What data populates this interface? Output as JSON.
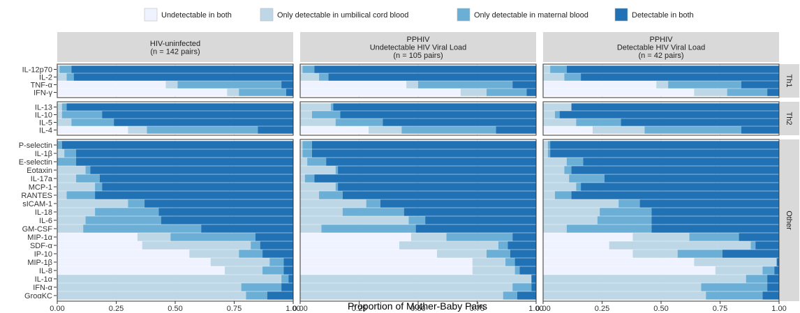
{
  "chart_data": {
    "type": "bar",
    "stacked": true,
    "orientation": "horizontal",
    "xlabel": "Proportion of Mother-Baby Pairs",
    "xlim": [
      0,
      1
    ],
    "x_ticks": [
      "0.00",
      "0.25",
      "0.50",
      "0.75",
      "1.00"
    ],
    "grid": true,
    "legend_position": "top",
    "series": [
      {
        "name": "Undetectable in both",
        "color": "#eff3ff"
      },
      {
        "name": "Only detectable in umbilical cord blood",
        "color": "#bdd7e7"
      },
      {
        "name": "Only detectable in maternal blood",
        "color": "#6baed6"
      },
      {
        "name": "Detectable in both",
        "color": "#2171b5"
      }
    ],
    "panels": [
      {
        "title_lines": [
          "HIV-uninfected",
          "(n = 142 pairs)"
        ]
      },
      {
        "title_lines": [
          "PPHIV",
          "Undetectable HIV Viral Load",
          "(n = 105 pairs)"
        ]
      },
      {
        "title_lines": [
          "PPHIV",
          "Detectable HIV Viral Load",
          "(n = 42 pairs)"
        ]
      }
    ],
    "groups": [
      {
        "label": "Th1",
        "rows": [
          "IL-12p70",
          "IL-2",
          "TNF-α",
          "IFN-γ"
        ]
      },
      {
        "label": "Th2",
        "rows": [
          "IL-13",
          "IL-10",
          "IL-5",
          "IL-4"
        ]
      },
      {
        "label": "Other",
        "rows": [
          "P-selectin",
          "IL-1β",
          "E-selectin",
          "Eotaxin",
          "IL-17a",
          "MCP-1",
          "RANTES",
          "sICAM-1",
          "IL-18",
          "IL-6",
          "GM-CSF",
          "MIP-1α",
          "SDF-α",
          "IP-10",
          "MIP-1β",
          "IL-8",
          "IL-1α",
          "IFN-α",
          "GroαKC"
        ]
      }
    ],
    "values": [
      [
        [
          0.0,
          0.01,
          0.05,
          0.94
        ],
        [
          0.0,
          0.04,
          0.03,
          0.93
        ],
        [
          0.46,
          0.05,
          0.44,
          0.05
        ],
        [
          0.72,
          0.05,
          0.2,
          0.03
        ],
        [
          0.0,
          0.02,
          0.02,
          0.96
        ],
        [
          0.0,
          0.02,
          0.17,
          0.81
        ],
        [
          0.0,
          0.06,
          0.18,
          0.76
        ],
        [
          0.3,
          0.08,
          0.47,
          0.15
        ],
        [
          0.0,
          0.0,
          0.02,
          0.98
        ],
        [
          0.0,
          0.03,
          0.05,
          0.92
        ],
        [
          0.0,
          0.0,
          0.08,
          0.92
        ],
        [
          0.0,
          0.12,
          0.02,
          0.86
        ],
        [
          0.0,
          0.08,
          0.1,
          0.82
        ],
        [
          0.0,
          0.16,
          0.03,
          0.81
        ],
        [
          0.0,
          0.04,
          0.12,
          0.84
        ],
        [
          0.0,
          0.3,
          0.07,
          0.63
        ],
        [
          0.0,
          0.16,
          0.27,
          0.57
        ],
        [
          0.0,
          0.12,
          0.32,
          0.56
        ],
        [
          0.0,
          0.11,
          0.5,
          0.39
        ],
        [
          0.34,
          0.14,
          0.36,
          0.16
        ],
        [
          0.36,
          0.46,
          0.04,
          0.14
        ],
        [
          0.56,
          0.21,
          0.1,
          0.13
        ],
        [
          0.65,
          0.25,
          0.06,
          0.04
        ],
        [
          0.71,
          0.16,
          0.09,
          0.04
        ],
        [
          0.0,
          0.95,
          0.03,
          0.02
        ],
        [
          0.0,
          0.78,
          0.17,
          0.05
        ],
        [
          0.0,
          0.8,
          0.09,
          0.11
        ]
      ],
      [
        [
          0.0,
          0.01,
          0.05,
          0.94
        ],
        [
          0.0,
          0.08,
          0.04,
          0.88
        ],
        [
          0.45,
          0.05,
          0.4,
          0.1
        ],
        [
          0.68,
          0.11,
          0.17,
          0.04
        ],
        [
          0.0,
          0.13,
          0.01,
          0.86
        ],
        [
          0.0,
          0.05,
          0.12,
          0.83
        ],
        [
          0.0,
          0.15,
          0.2,
          0.65
        ],
        [
          0.29,
          0.14,
          0.4,
          0.17
        ],
        [
          0.0,
          0.01,
          0.04,
          0.95
        ],
        [
          0.0,
          0.01,
          0.04,
          0.95
        ],
        [
          0.0,
          0.03,
          0.08,
          0.89
        ],
        [
          0.0,
          0.15,
          0.01,
          0.84
        ],
        [
          0.0,
          0.02,
          0.04,
          0.94
        ],
        [
          0.0,
          0.15,
          0.01,
          0.84
        ],
        [
          0.0,
          0.08,
          0.1,
          0.82
        ],
        [
          0.0,
          0.28,
          0.06,
          0.66
        ],
        [
          0.0,
          0.18,
          0.26,
          0.56
        ],
        [
          0.0,
          0.46,
          0.07,
          0.47
        ],
        [
          0.0,
          0.09,
          0.4,
          0.51
        ],
        [
          0.47,
          0.15,
          0.28,
          0.1
        ],
        [
          0.42,
          0.42,
          0.04,
          0.12
        ],
        [
          0.58,
          0.21,
          0.1,
          0.11
        ],
        [
          0.73,
          0.14,
          0.04,
          0.09
        ],
        [
          0.73,
          0.18,
          0.02,
          0.07
        ],
        [
          0.0,
          0.98,
          0.0,
          0.02
        ],
        [
          0.0,
          0.9,
          0.08,
          0.02
        ],
        [
          0.0,
          0.86,
          0.06,
          0.08
        ]
      ],
      [
        [
          0.0,
          0.03,
          0.07,
          0.9
        ],
        [
          0.0,
          0.09,
          0.07,
          0.84
        ],
        [
          0.48,
          0.05,
          0.31,
          0.16
        ],
        [
          0.64,
          0.14,
          0.17,
          0.05
        ],
        [
          0.0,
          0.12,
          0.0,
          0.88
        ],
        [
          0.0,
          0.05,
          0.02,
          0.93
        ],
        [
          0.0,
          0.14,
          0.19,
          0.67
        ],
        [
          0.21,
          0.22,
          0.41,
          0.16
        ],
        [
          0.0,
          0.02,
          0.01,
          0.97
        ],
        [
          0.0,
          0.02,
          0.01,
          0.97
        ],
        [
          0.0,
          0.1,
          0.07,
          0.83
        ],
        [
          0.0,
          0.09,
          0.03,
          0.88
        ],
        [
          0.0,
          0.11,
          0.15,
          0.74
        ],
        [
          0.0,
          0.14,
          0.02,
          0.84
        ],
        [
          0.0,
          0.05,
          0.07,
          0.88
        ],
        [
          0.0,
          0.32,
          0.09,
          0.59
        ],
        [
          0.0,
          0.24,
          0.22,
          0.54
        ],
        [
          0.0,
          0.23,
          0.23,
          0.54
        ],
        [
          0.0,
          0.1,
          0.36,
          0.54
        ],
        [
          0.38,
          0.24,
          0.21,
          0.17
        ],
        [
          0.28,
          0.6,
          0.02,
          0.1
        ],
        [
          0.38,
          0.19,
          0.19,
          0.24
        ],
        [
          0.64,
          0.35,
          0.0,
          0.01
        ],
        [
          0.73,
          0.2,
          0.05,
          0.02
        ],
        [
          0.0,
          0.86,
          0.09,
          0.05
        ],
        [
          0.0,
          0.67,
          0.28,
          0.05
        ],
        [
          0.0,
          0.69,
          0.24,
          0.07
        ]
      ]
    ]
  }
}
